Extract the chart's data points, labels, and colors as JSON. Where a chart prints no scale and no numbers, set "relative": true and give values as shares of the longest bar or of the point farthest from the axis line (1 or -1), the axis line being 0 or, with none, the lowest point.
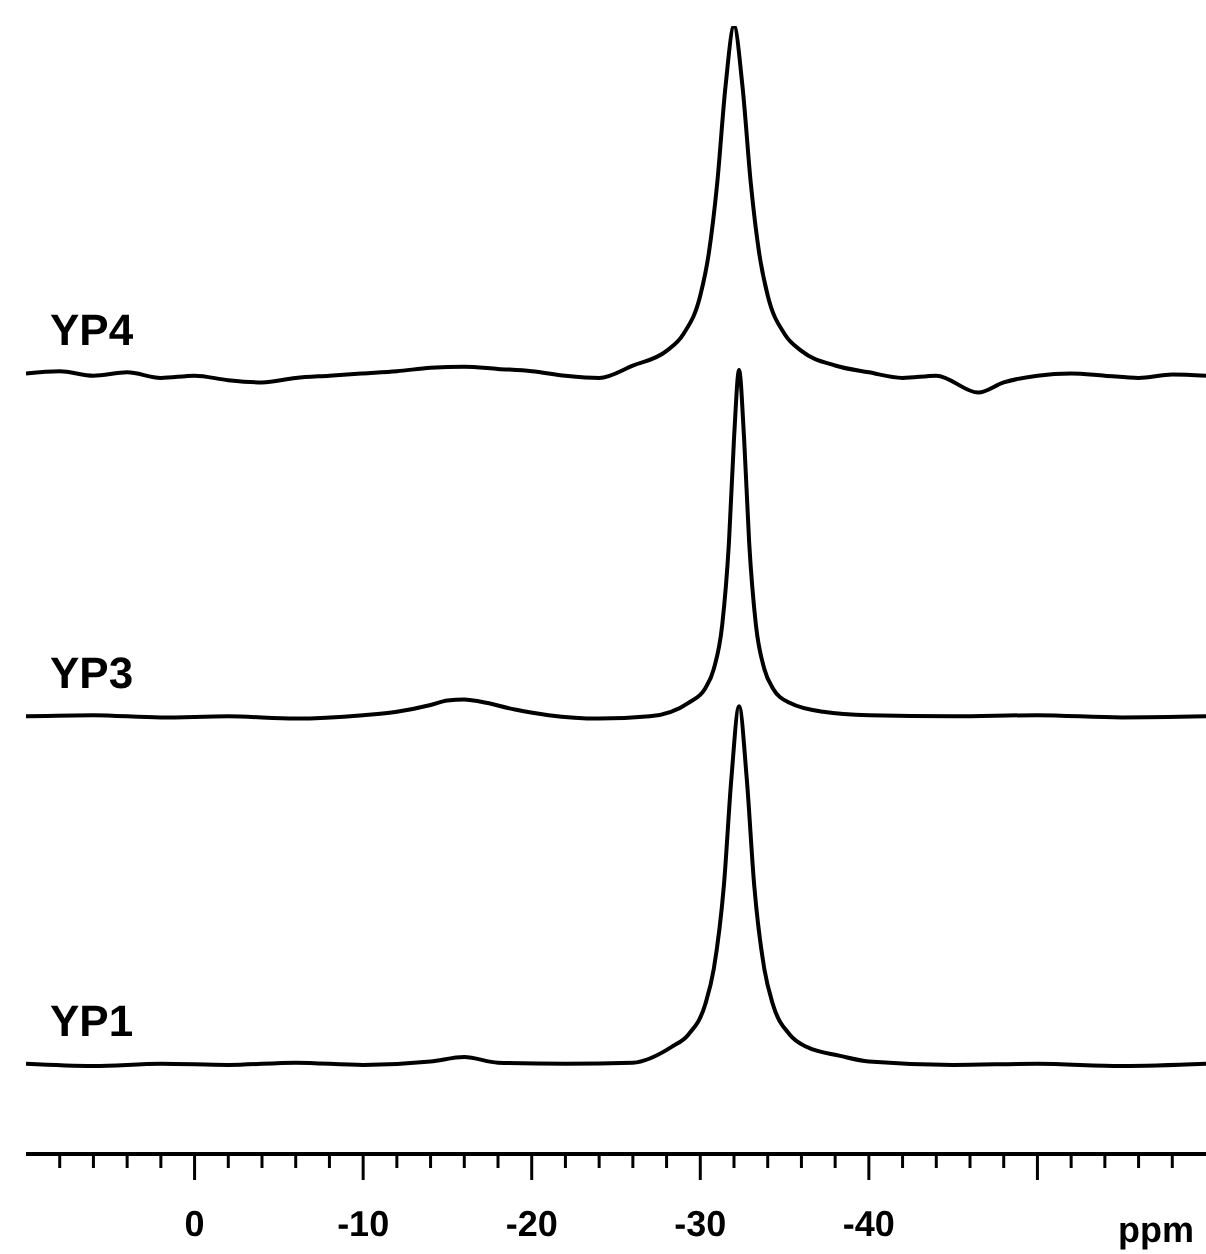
{
  "chart_data": {
    "type": "line",
    "relative": true,
    "xlabel": "ppm",
    "xlim": [
      10,
      -60
    ],
    "xticks": [
      {
        "value": 8,
        "label": null
      },
      {
        "value": 6,
        "label": null
      },
      {
        "value": 4,
        "label": null
      },
      {
        "value": 2,
        "label": null
      },
      0,
      {
        "value": -2,
        "label": null
      },
      {
        "value": -4,
        "label": null
      },
      {
        "value": -6,
        "label": null
      },
      {
        "value": -8,
        "label": null
      },
      -10,
      {
        "value": -12,
        "label": null
      },
      {
        "value": -14,
        "label": null
      },
      {
        "value": -16,
        "label": null
      },
      {
        "value": -18,
        "label": null
      },
      -20,
      {
        "value": -22,
        "label": null
      },
      {
        "value": -24,
        "label": null
      },
      {
        "value": -26,
        "label": null
      },
      {
        "value": -28,
        "label": null
      },
      -30,
      {
        "value": -32,
        "label": null
      },
      {
        "value": -34,
        "label": null
      },
      {
        "value": -36,
        "label": null
      },
      {
        "value": -38,
        "label": null
      },
      -40,
      {
        "value": -42,
        "label": null
      },
      {
        "value": -44,
        "label": null
      },
      {
        "value": -46,
        "label": null
      },
      {
        "value": -48,
        "label": null
      },
      {
        "value": -50,
        "label": null
      },
      {
        "value": -52,
        "label": null
      },
      {
        "value": -54,
        "label": null
      },
      {
        "value": -56,
        "label": null
      },
      {
        "value": -58,
        "label": null
      }
    ],
    "marker": "none",
    "line_style": "solid",
    "series": [
      {
        "name": "YP4",
        "color": "#000000",
        "x": [
          10,
          8,
          6,
          4,
          2,
          0,
          -2,
          -4,
          -6,
          -8,
          -10,
          -12,
          -14,
          -16,
          -18,
          -20,
          -22,
          -24,
          -26,
          -28,
          -29,
          -30,
          -30.5,
          -31,
          -31.5,
          -32,
          -32.5,
          -33,
          -33.5,
          -34,
          -35,
          -36,
          -38,
          -40,
          -42,
          -44,
          -46.5,
          -48,
          -50,
          -52,
          -54,
          -56,
          -58,
          -60
        ],
        "values": [
          0.692,
          0.694,
          0.69,
          0.693,
          0.688,
          0.69,
          0.686,
          0.684,
          0.688,
          0.69,
          0.692,
          0.694,
          0.697,
          0.698,
          0.696,
          0.694,
          0.69,
          0.688,
          0.699,
          0.712,
          0.727,
          0.761,
          0.798,
          0.86,
          0.947,
          1.0,
          0.947,
          0.86,
          0.798,
          0.761,
          0.727,
          0.712,
          0.699,
          0.693,
          0.688,
          0.69,
          0.675,
          0.684,
          0.69,
          0.692,
          0.69,
          0.688,
          0.691,
          0.69
        ]
      },
      {
        "name": "YP3",
        "color": "#000000",
        "x": [
          10,
          6,
          2,
          -2,
          -6,
          -10,
          -12,
          -14,
          -15,
          -16,
          -17,
          -19,
          -21,
          -24,
          -27,
          -29.3,
          -30.3,
          -30.8,
          -31.3,
          -31.7,
          -32,
          -32.3,
          -32.6,
          -32.9,
          -33.3,
          -33.8,
          -34.3,
          -35.3,
          -37.3,
          -40,
          -45,
          -50,
          -55,
          -60
        ],
        "values": [
          0.388,
          0.389,
          0.387,
          0.388,
          0.386,
          0.389,
          0.392,
          0.398,
          0.402,
          0.403,
          0.401,
          0.394,
          0.389,
          0.386,
          0.388,
          0.4,
          0.413,
          0.43,
          0.469,
          0.542,
          0.634,
          0.695,
          0.634,
          0.542,
          0.469,
          0.43,
          0.413,
          0.4,
          0.392,
          0.389,
          0.388,
          0.389,
          0.387,
          0.388
        ]
      },
      {
        "name": "YP1",
        "color": "#000000",
        "x": [
          10,
          6,
          2,
          -2,
          -6,
          -10,
          -14,
          -16,
          -18,
          -22,
          -26,
          -28.3,
          -29.3,
          -30.3,
          -30.8,
          -31.4,
          -31.85,
          -32.3,
          -32.75,
          -33.2,
          -33.8,
          -34.3,
          -35.3,
          -36.3,
          -38.3,
          -40,
          -45,
          -50,
          -55,
          -60
        ],
        "values": [
          0.08,
          0.078,
          0.08,
          0.079,
          0.081,
          0.079,
          0.082,
          0.086,
          0.081,
          0.08,
          0.081,
          0.095,
          0.106,
          0.133,
          0.164,
          0.238,
          0.334,
          0.397,
          0.334,
          0.238,
          0.164,
          0.133,
          0.106,
          0.095,
          0.087,
          0.082,
          0.079,
          0.08,
          0.078,
          0.08
        ]
      }
    ]
  }
}
